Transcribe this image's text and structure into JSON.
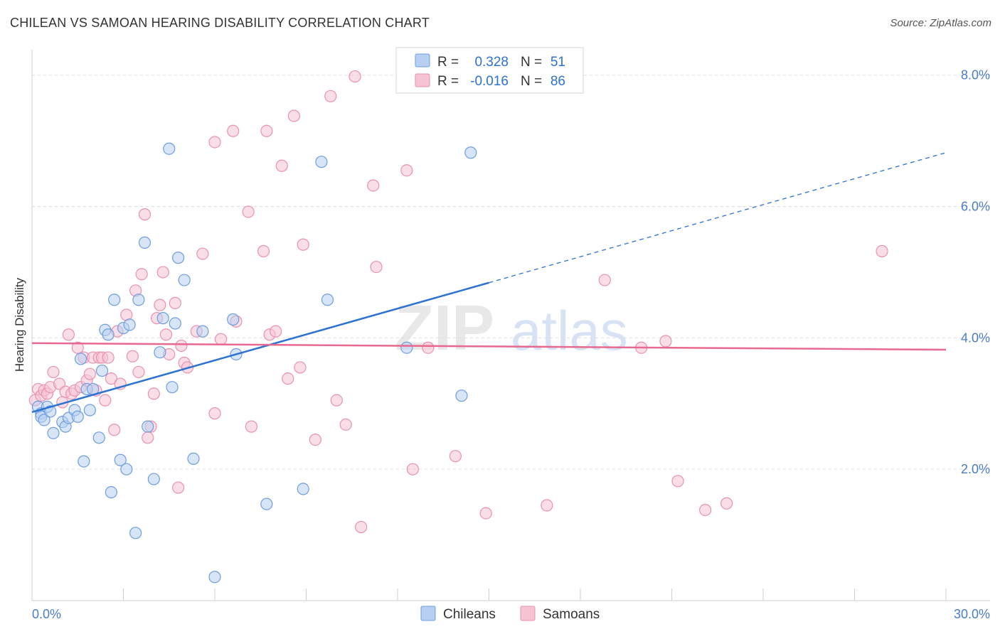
{
  "header": {
    "title": "CHILEAN VS SAMOAN HEARING DISABILITY CORRELATION CHART",
    "source": "Source: ZipAtlas.com"
  },
  "watermark": {
    "zip": "ZIP",
    "atlas": "atlas"
  },
  "colors": {
    "chileans_fill": "#b7d0f1",
    "chileans_stroke": "#6e9de0",
    "chileans_line": "#2c72d1",
    "samoans_fill": "#f6c3d3",
    "samoans_stroke": "#e891b0",
    "samoans_line": "#e7698f",
    "grid": "#dddddd",
    "axis_text": "#4a7cc9"
  },
  "chart_data": {
    "type": "scatter",
    "title": "CHILEAN VS SAMOAN HEARING DISABILITY CORRELATION CHART",
    "xlabel": "",
    "ylabel": "Hearing Disability",
    "xlim": [
      0,
      30
    ],
    "ylim": [
      0,
      8.3
    ],
    "x_tick_labels": [
      "0.0%",
      "30.0%"
    ],
    "y_ticks": [
      2,
      4,
      6,
      8
    ],
    "y_tick_labels": [
      "2.0%",
      "4.0%",
      "6.0%",
      "8.0%"
    ],
    "grid": true,
    "legend_position": "top-center",
    "stats": [
      {
        "series": "Chileans",
        "r_label": "R =",
        "r_value": "0.328",
        "n_label": "N =",
        "n_value": "51"
      },
      {
        "series": "Samoans",
        "r_label": "R =",
        "r_value": "-0.016",
        "n_label": "N =",
        "n_value": "86"
      }
    ],
    "series": [
      {
        "name": "Chileans",
        "trend": {
          "x0": 0.0,
          "y0": 2.87,
          "x1": 15.0,
          "y1": 4.84,
          "dashed_x1": 30.0,
          "dashed_y1": 6.82
        },
        "points": [
          [
            0.2,
            2.95
          ],
          [
            0.3,
            2.85
          ],
          [
            0.3,
            2.8
          ],
          [
            0.4,
            2.75
          ],
          [
            0.5,
            2.95
          ],
          [
            0.6,
            2.88
          ],
          [
            0.7,
            2.55
          ],
          [
            1.0,
            2.72
          ],
          [
            1.1,
            2.65
          ],
          [
            1.2,
            2.78
          ],
          [
            1.4,
            2.9
          ],
          [
            1.5,
            2.8
          ],
          [
            1.6,
            3.68
          ],
          [
            1.7,
            2.12
          ],
          [
            1.8,
            3.22
          ],
          [
            1.9,
            2.9
          ],
          [
            2.0,
            3.22
          ],
          [
            2.2,
            2.48
          ],
          [
            2.3,
            3.5
          ],
          [
            2.4,
            4.12
          ],
          [
            2.5,
            4.05
          ],
          [
            2.6,
            1.65
          ],
          [
            2.7,
            4.58
          ],
          [
            2.9,
            2.14
          ],
          [
            3.0,
            4.15
          ],
          [
            3.1,
            2.0
          ],
          [
            3.2,
            4.2
          ],
          [
            3.4,
            1.03
          ],
          [
            3.5,
            4.58
          ],
          [
            3.7,
            5.45
          ],
          [
            3.8,
            2.65
          ],
          [
            4.0,
            1.85
          ],
          [
            4.2,
            3.78
          ],
          [
            4.3,
            4.3
          ],
          [
            4.5,
            6.88
          ],
          [
            4.6,
            3.25
          ],
          [
            4.7,
            4.22
          ],
          [
            4.8,
            5.22
          ],
          [
            5.0,
            4.88
          ],
          [
            5.3,
            2.16
          ],
          [
            5.6,
            4.1
          ],
          [
            6.0,
            0.36
          ],
          [
            6.6,
            4.28
          ],
          [
            6.7,
            3.75
          ],
          [
            7.7,
            1.47
          ],
          [
            8.9,
            1.7
          ],
          [
            9.5,
            6.68
          ],
          [
            9.7,
            4.58
          ],
          [
            12.3,
            3.85
          ],
          [
            14.1,
            3.12
          ],
          [
            14.4,
            6.82
          ]
        ]
      },
      {
        "name": "Samoans",
        "trend": {
          "x0": 0.0,
          "y0": 3.92,
          "x1": 30.0,
          "y1": 3.82
        },
        "points": [
          [
            0.1,
            3.05
          ],
          [
            0.2,
            3.22
          ],
          [
            0.3,
            3.12
          ],
          [
            0.4,
            3.2
          ],
          [
            0.5,
            3.15
          ],
          [
            0.6,
            3.25
          ],
          [
            0.7,
            3.48
          ],
          [
            0.9,
            3.3
          ],
          [
            1.0,
            3.02
          ],
          [
            1.1,
            3.18
          ],
          [
            1.2,
            4.05
          ],
          [
            1.3,
            3.15
          ],
          [
            1.4,
            3.2
          ],
          [
            1.5,
            3.85
          ],
          [
            1.6,
            3.25
          ],
          [
            1.7,
            3.7
          ],
          [
            1.8,
            3.35
          ],
          [
            1.9,
            3.45
          ],
          [
            2.0,
            3.7
          ],
          [
            2.1,
            3.2
          ],
          [
            2.2,
            3.7
          ],
          [
            2.3,
            3.7
          ],
          [
            2.4,
            3.05
          ],
          [
            2.5,
            3.7
          ],
          [
            2.6,
            3.38
          ],
          [
            2.7,
            2.6
          ],
          [
            2.8,
            4.1
          ],
          [
            2.9,
            3.3
          ],
          [
            3.1,
            4.35
          ],
          [
            3.3,
            3.72
          ],
          [
            3.4,
            4.72
          ],
          [
            3.5,
            3.48
          ],
          [
            3.6,
            4.97
          ],
          [
            3.7,
            5.88
          ],
          [
            3.8,
            2.48
          ],
          [
            3.9,
            2.65
          ],
          [
            4.0,
            3.15
          ],
          [
            4.1,
            4.3
          ],
          [
            4.2,
            4.5
          ],
          [
            4.3,
            5.0
          ],
          [
            4.4,
            4.05
          ],
          [
            4.5,
            3.75
          ],
          [
            4.7,
            4.53
          ],
          [
            4.8,
            1.72
          ],
          [
            4.9,
            3.88
          ],
          [
            5.0,
            3.62
          ],
          [
            5.1,
            3.55
          ],
          [
            5.4,
            4.1
          ],
          [
            5.6,
            5.28
          ],
          [
            6.0,
            2.85
          ],
          [
            6.0,
            6.98
          ],
          [
            6.2,
            3.98
          ],
          [
            6.6,
            7.15
          ],
          [
            6.7,
            4.25
          ],
          [
            7.1,
            5.92
          ],
          [
            7.2,
            2.65
          ],
          [
            7.6,
            5.32
          ],
          [
            7.7,
            7.15
          ],
          [
            7.8,
            4.05
          ],
          [
            8.0,
            4.1
          ],
          [
            8.2,
            6.62
          ],
          [
            8.4,
            3.38
          ],
          [
            8.6,
            7.38
          ],
          [
            8.8,
            3.55
          ],
          [
            8.9,
            5.42
          ],
          [
            9.3,
            2.45
          ],
          [
            9.8,
            7.68
          ],
          [
            10.0,
            3.05
          ],
          [
            10.3,
            2.68
          ],
          [
            10.6,
            7.98
          ],
          [
            10.8,
            1.12
          ],
          [
            11.2,
            6.32
          ],
          [
            11.3,
            5.08
          ],
          [
            12.3,
            6.55
          ],
          [
            12.5,
            2.0
          ],
          [
            13.0,
            3.85
          ],
          [
            13.9,
            2.2
          ],
          [
            14.9,
            1.33
          ],
          [
            16.9,
            1.45
          ],
          [
            18.8,
            4.88
          ],
          [
            20.0,
            3.85
          ],
          [
            20.8,
            3.95
          ],
          [
            21.2,
            1.82
          ],
          [
            22.1,
            1.38
          ],
          [
            22.8,
            1.48
          ],
          [
            27.9,
            5.32
          ]
        ]
      }
    ]
  },
  "legend": {
    "items": [
      "Chileans",
      "Samoans"
    ]
  }
}
